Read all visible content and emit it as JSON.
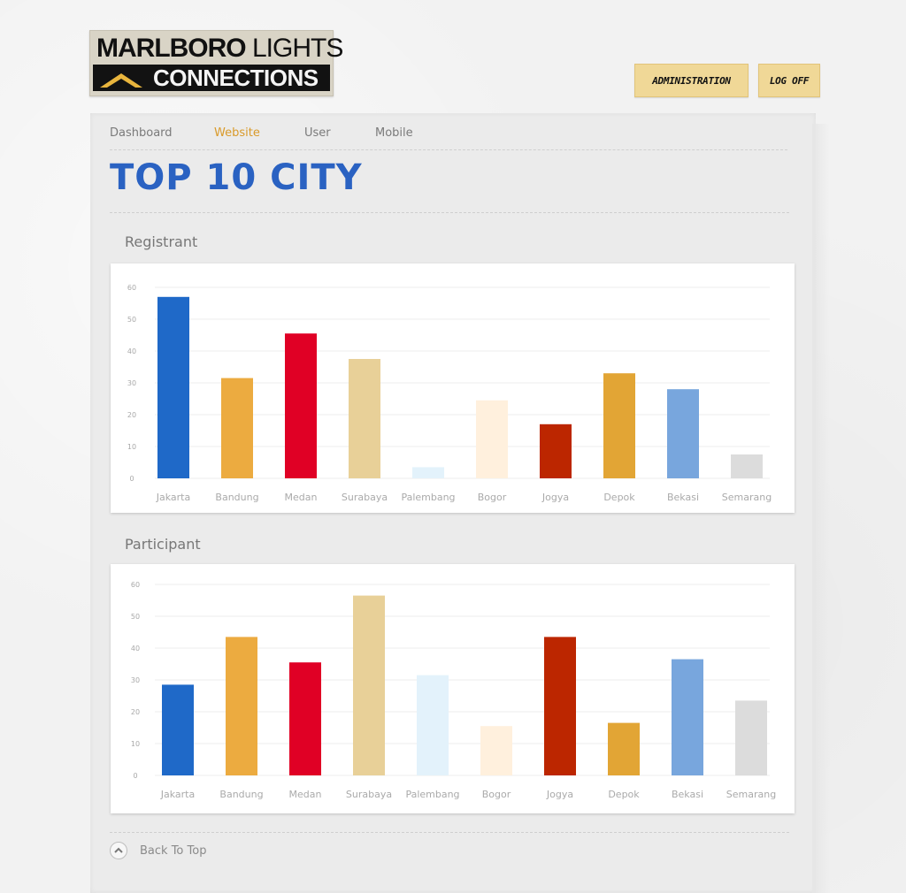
{
  "logo": {
    "line1_bold": "MARLBORO",
    "line1_light": "LIGHTS",
    "line2": "CONNECTIONS"
  },
  "header": {
    "admin_label": "ADMINISTRATION",
    "logoff_label": "LOG OFF"
  },
  "nav": {
    "items": [
      {
        "label": "Dashboard",
        "active": false
      },
      {
        "label": "Website",
        "active": true
      },
      {
        "label": "User",
        "active": false
      },
      {
        "label": "Mobile",
        "active": false
      }
    ]
  },
  "page": {
    "title": "TOP 10 CITY"
  },
  "colors": {
    "accent": "#d99a2a",
    "title": "#2a62c2",
    "bars": [
      "#1f69c8",
      "#ecab40",
      "#e00025",
      "#e8d098",
      "#e3f2fb",
      "#fff0dd",
      "#bc2600",
      "#e2a535",
      "#78a6dd",
      "#dcdcdc"
    ]
  },
  "sections": {
    "registrant_label": "Registrant",
    "participant_label": "Participant"
  },
  "chart_data": [
    {
      "type": "bar",
      "title": "Registrant",
      "categories": [
        "Jakarta",
        "Bandung",
        "Medan",
        "Surabaya",
        "Palembang",
        "Bogor",
        "Jogya",
        "Depok",
        "Bekasi",
        "Semarang"
      ],
      "values": [
        57,
        31.5,
        45.5,
        37.5,
        3.5,
        24.5,
        17,
        33,
        28,
        7.5
      ],
      "yticks": [
        0,
        10,
        20,
        30,
        40,
        50,
        60
      ],
      "ylim": [
        0,
        60
      ],
      "grid": true
    },
    {
      "type": "bar",
      "title": "Participant",
      "categories": [
        "Jakarta",
        "Bandung",
        "Medan",
        "Surabaya",
        "Palembang",
        "Bogor",
        "Jogya",
        "Depok",
        "Bekasi",
        "Semarang"
      ],
      "values": [
        28.5,
        43.5,
        35.5,
        56.5,
        31.5,
        15.5,
        43.5,
        16.5,
        36.5,
        23.5
      ],
      "yticks": [
        0,
        10,
        20,
        30,
        40,
        50,
        60
      ],
      "ylim": [
        0,
        60
      ],
      "grid": true
    }
  ],
  "footer": {
    "back_to_top": "Back To Top"
  }
}
